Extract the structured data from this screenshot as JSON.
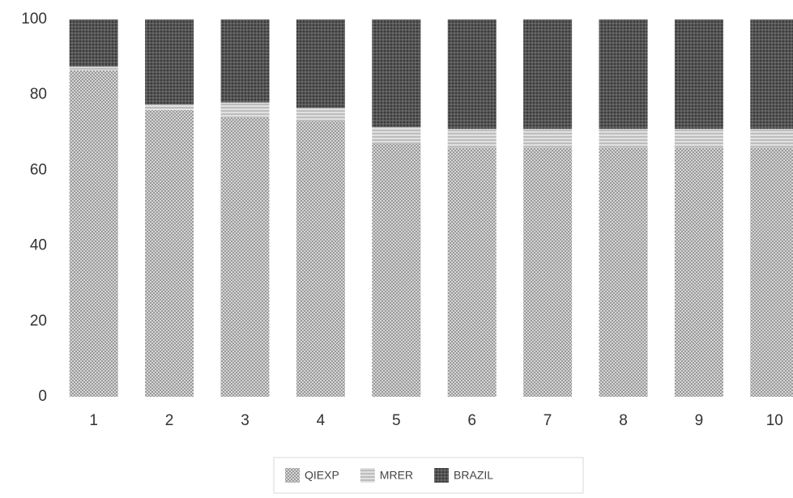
{
  "chart_data": {
    "type": "stacked-bar",
    "categories": [
      "1",
      "2",
      "3",
      "4",
      "5",
      "6",
      "7",
      "8",
      "9",
      "10"
    ],
    "series": [
      {
        "name": "QIEXP",
        "color": "#8a8a8a",
        "pattern": "crosshatch",
        "values": [
          86.5,
          76,
          74,
          73,
          67,
          66,
          66,
          66,
          66,
          66
        ]
      },
      {
        "name": "MRER",
        "color": "#9a9a9a",
        "pattern": "horizontal",
        "values": [
          1,
          1.5,
          4,
          3.5,
          4.5,
          5,
          5,
          5,
          5,
          5
        ]
      },
      {
        "name": "BRAZIL",
        "color": "#3a3a3a",
        "pattern": "grid",
        "values": [
          12.5,
          22.5,
          22,
          23.5,
          28.5,
          29,
          29,
          29,
          29,
          29
        ]
      }
    ],
    "ylim": [
      0,
      100
    ],
    "yticks": [
      0,
      20,
      40,
      60,
      80,
      100
    ],
    "grid": false,
    "legend": "bottom"
  }
}
